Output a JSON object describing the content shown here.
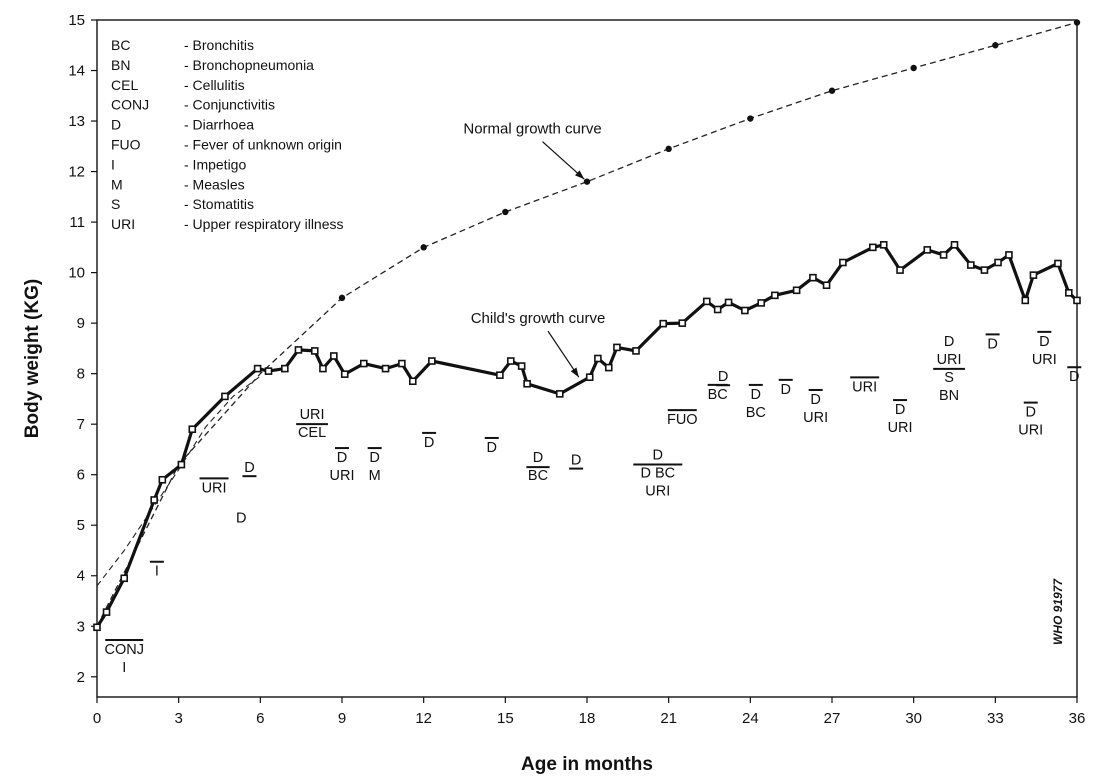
{
  "chart_data": {
    "type": "line",
    "xlabel": "Age in months",
    "ylabel": "Body weight (KG)",
    "xlim": [
      0,
      36
    ],
    "ylim": [
      1.6,
      15
    ],
    "xticks": [
      0,
      3,
      6,
      9,
      12,
      15,
      18,
      21,
      24,
      27,
      30,
      33,
      36
    ],
    "yticks": [
      2,
      3,
      4,
      5,
      6,
      7,
      8,
      9,
      10,
      11,
      12,
      13,
      14,
      15
    ],
    "grid": false,
    "watermark": "WHO 91977",
    "legend": {
      "placement": "top-left",
      "entries": [
        {
          "code": "BC",
          "text": "- Bronchitis"
        },
        {
          "code": "BN",
          "text": "- Bronchopneumonia"
        },
        {
          "code": "CEL",
          "text": "- Cellulitis"
        },
        {
          "code": "CONJ",
          "text": "- Conjunctivitis"
        },
        {
          "code": "D",
          "text": "- Diarrhoea"
        },
        {
          "code": "FUO",
          "text": "- Fever of unknown origin"
        },
        {
          "code": "I",
          "text": "- Impetigo"
        },
        {
          "code": "M",
          "text": "- Measles"
        },
        {
          "code": "S",
          "text": "- Stomatitis"
        },
        {
          "code": "URI",
          "text": "- Upper respiratory illness"
        }
      ]
    },
    "series": [
      {
        "name": "Normal growth curve",
        "style": "dashed",
        "points": [
          [
            0,
            3.0
          ],
          [
            3,
            6.2
          ],
          [
            6,
            8.0
          ],
          [
            9,
            9.5
          ],
          [
            12,
            10.5
          ],
          [
            15,
            11.2
          ],
          [
            18,
            11.8
          ],
          [
            21,
            12.45
          ],
          [
            24,
            13.05
          ],
          [
            27,
            13.6
          ],
          [
            30,
            14.05
          ],
          [
            33,
            14.5
          ],
          [
            36,
            14.95
          ]
        ],
        "marked_x": [
          9,
          12,
          15,
          18,
          21,
          24,
          27,
          30,
          33,
          36
        ]
      },
      {
        "name": "Child's growth curve",
        "style": "solid",
        "points": [
          [
            0,
            2.98
          ],
          [
            0.35,
            3.28
          ],
          [
            1.0,
            3.95
          ],
          [
            2.1,
            5.5
          ],
          [
            2.4,
            5.9
          ],
          [
            3.1,
            6.2
          ],
          [
            3.5,
            6.9
          ],
          [
            4.7,
            7.55
          ],
          [
            5.9,
            8.1
          ],
          [
            6.3,
            8.05
          ],
          [
            6.9,
            8.1
          ],
          [
            7.4,
            8.47
          ],
          [
            8.0,
            8.45
          ],
          [
            8.3,
            8.1
          ],
          [
            8.7,
            8.35
          ],
          [
            9.1,
            7.99
          ],
          [
            9.8,
            8.2
          ],
          [
            10.6,
            8.1
          ],
          [
            11.2,
            8.2
          ],
          [
            11.6,
            7.85
          ],
          [
            12.3,
            8.25
          ],
          [
            14.8,
            7.97
          ],
          [
            15.2,
            8.25
          ],
          [
            15.6,
            8.15
          ],
          [
            15.8,
            7.8
          ],
          [
            17.0,
            7.6
          ],
          [
            18.1,
            7.93
          ],
          [
            18.4,
            8.3
          ],
          [
            18.8,
            8.12
          ],
          [
            19.1,
            8.52
          ],
          [
            19.8,
            8.45
          ],
          [
            20.8,
            8.99
          ],
          [
            21.5,
            9.0
          ],
          [
            22.4,
            9.43
          ],
          [
            22.8,
            9.27
          ],
          [
            23.2,
            9.41
          ],
          [
            23.8,
            9.25
          ],
          [
            24.4,
            9.4
          ],
          [
            24.9,
            9.55
          ],
          [
            25.7,
            9.65
          ],
          [
            26.3,
            9.9
          ],
          [
            26.8,
            9.75
          ],
          [
            27.4,
            10.2
          ],
          [
            28.5,
            10.5
          ],
          [
            28.9,
            10.55
          ],
          [
            29.5,
            10.05
          ],
          [
            30.5,
            10.45
          ],
          [
            31.1,
            10.35
          ],
          [
            31.5,
            10.55
          ],
          [
            32.1,
            10.15
          ],
          [
            32.6,
            10.05
          ],
          [
            33.1,
            10.2
          ],
          [
            33.5,
            10.35
          ],
          [
            34.1,
            9.45
          ],
          [
            34.4,
            9.95
          ],
          [
            35.3,
            10.18
          ],
          [
            35.7,
            9.6
          ],
          [
            36.0,
            9.45
          ]
        ]
      }
    ],
    "curve_labels": [
      {
        "text": "Normal growth curve",
        "anchor_x": 16.0,
        "anchor_y": 12.75,
        "arrow_to": [
          17.9,
          11.85
        ]
      },
      {
        "text": "Child's growth curve",
        "anchor_x": 16.2,
        "anchor_y": 9.0,
        "arrow_to": [
          17.7,
          7.93
        ]
      }
    ],
    "annotations": [
      {
        "x": 1.0,
        "y": 2.45,
        "lines": [
          "CONJ",
          "I"
        ],
        "bar": "above",
        "bar_x": 1.0
      },
      {
        "x": 2.2,
        "y": 4.0,
        "lines": [
          "I"
        ],
        "bar": "above"
      },
      {
        "x": 4.3,
        "y": 5.65,
        "lines": [
          "URI"
        ],
        "bar": "above"
      },
      {
        "x": 5.3,
        "y": 5.05,
        "lines": [
          "D"
        ]
      },
      {
        "x": 5.6,
        "y": 6.05,
        "lines": [
          "D"
        ],
        "bar": "below"
      },
      {
        "x": 7.9,
        "y": 7.1,
        "lines": [
          "URI",
          "CEL"
        ],
        "bar": "between"
      },
      {
        "x": 9.0,
        "y": 6.25,
        "lines": [
          "D",
          "URI"
        ],
        "bar": "above-first"
      },
      {
        "x": 10.2,
        "y": 6.25,
        "lines": [
          "D",
          "M"
        ],
        "bar": "above-first"
      },
      {
        "x": 12.2,
        "y": 6.55,
        "lines": [
          "D"
        ],
        "bar": "above"
      },
      {
        "x": 14.5,
        "y": 6.45,
        "lines": [
          "D"
        ],
        "bar": "above"
      },
      {
        "x": 16.2,
        "y": 6.25,
        "lines": [
          "D",
          "BC"
        ],
        "bar": "between"
      },
      {
        "x": 17.6,
        "y": 6.2,
        "lines": [
          "D"
        ],
        "bar": "below"
      },
      {
        "x": 20.6,
        "y": 6.3,
        "lines": [
          "D",
          "D  BC",
          "URI"
        ],
        "bar": "between"
      },
      {
        "x": 21.5,
        "y": 7.0,
        "lines": [
          "FUO"
        ],
        "bar": "above"
      },
      {
        "x": 22.8,
        "y": 7.5,
        "lines": [
          "BC"
        ],
        "bar": "above"
      },
      {
        "x": 23.0,
        "y": 7.85,
        "lines": [
          "D"
        ],
        "bar": "below"
      },
      {
        "x": 24.2,
        "y": 7.5,
        "lines": [
          "D",
          "BC"
        ],
        "bar": "above-first"
      },
      {
        "x": 25.3,
        "y": 7.6,
        "lines": [
          "D"
        ],
        "bar": "above"
      },
      {
        "x": 26.4,
        "y": 7.4,
        "lines": [
          "D",
          "URI"
        ],
        "bar": "above-first"
      },
      {
        "x": 28.2,
        "y": 7.65,
        "lines": [
          "URI"
        ],
        "bar": "above"
      },
      {
        "x": 29.5,
        "y": 7.2,
        "lines": [
          "D",
          "URI"
        ],
        "bar": "above-first"
      },
      {
        "x": 31.3,
        "y": 8.55,
        "lines": [
          "D",
          "URI",
          "S",
          "BN"
        ],
        "bar": "between3"
      },
      {
        "x": 32.9,
        "y": 8.5,
        "lines": [
          "D"
        ],
        "bar": "above"
      },
      {
        "x": 34.3,
        "y": 7.15,
        "lines": [
          "D",
          "URI"
        ],
        "bar": "above-first"
      },
      {
        "x": 34.8,
        "y": 8.55,
        "lines": [
          "D",
          "URI"
        ],
        "bar": "above-first"
      },
      {
        "x": 35.9,
        "y": 7.85,
        "lines": [
          "D"
        ],
        "bar": "above"
      }
    ]
  }
}
